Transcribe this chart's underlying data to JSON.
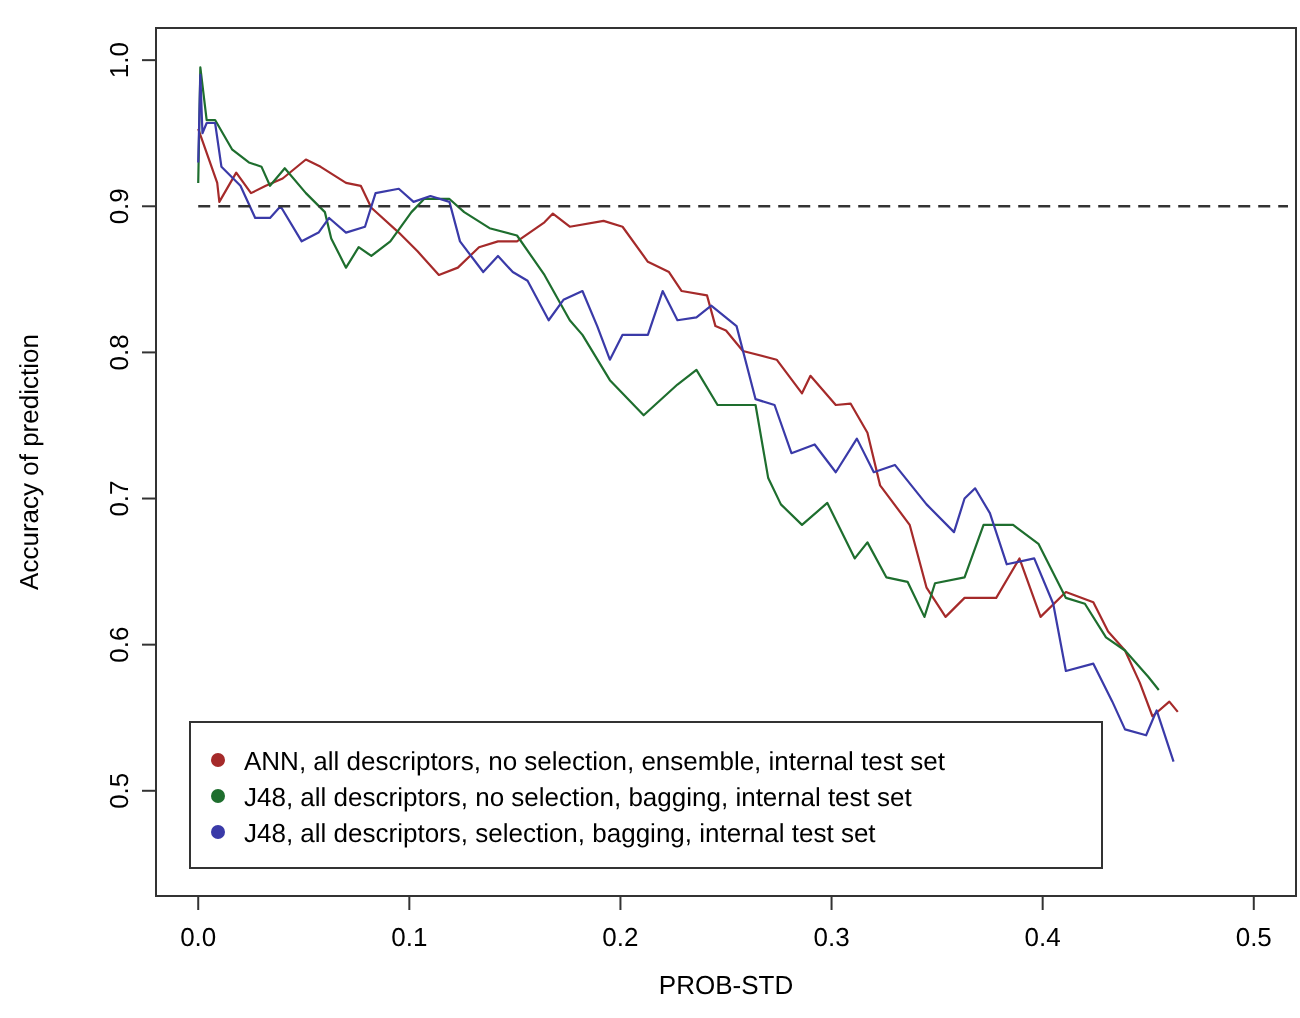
{
  "chart_data": {
    "type": "line",
    "xlabel": "PROB-STD",
    "ylabel": "Accuracy of prediction",
    "xlim": [
      -0.02,
      0.52
    ],
    "ylim": [
      0.428,
      1.022
    ],
    "xticks": [
      {
        "value": 0,
        "label": "0.0"
      },
      0.1,
      0.2,
      0.3,
      0.4,
      0.5
    ],
    "yticks": [
      0.5,
      0.6,
      0.7,
      0.8,
      0.9,
      {
        "value": 1,
        "label": "1.0"
      }
    ],
    "grid": false,
    "legend": "bottom left",
    "line_style": "solid",
    "marker": "none",
    "ref_lines": [
      {
        "axis": "y",
        "value": 0.9,
        "line_style": "dashed",
        "color": "#333333"
      }
    ],
    "series": [
      {
        "name": "ANN, all descriptors, no selection, ensemble, internal test set",
        "color": "#a52a2a",
        "x": [
          0,
          0.009,
          0.01,
          0.018,
          0.025,
          0.032,
          0.04,
          0.051,
          0.058,
          0.07,
          0.077,
          0.082,
          0.095,
          0.104,
          0.114,
          0.123,
          0.133,
          0.142,
          0.151,
          0.164,
          0.168,
          0.176,
          0.192,
          0.201,
          0.213,
          0.223,
          0.229,
          0.241,
          0.245,
          0.25,
          0.258,
          0.274,
          0.286,
          0.29,
          0.302,
          0.309,
          0.317,
          0.323,
          0.337,
          0.345,
          0.354,
          0.363,
          0.37,
          0.378,
          0.389,
          0.399,
          0.411,
          0.424,
          0.431,
          0.439,
          0.446,
          0.452,
          0.46,
          0.464
        ],
        "values": [
          0.953,
          0.916,
          0.903,
          0.923,
          0.909,
          0.914,
          0.919,
          0.932,
          0.927,
          0.916,
          0.914,
          0.899,
          0.882,
          0.869,
          0.853,
          0.858,
          0.872,
          0.876,
          0.876,
          0.889,
          0.895,
          0.886,
          0.89,
          0.886,
          0.862,
          0.855,
          0.842,
          0.839,
          0.818,
          0.815,
          0.801,
          0.795,
          0.772,
          0.784,
          0.764,
          0.765,
          0.745,
          0.709,
          0.682,
          0.639,
          0.619,
          0.632,
          0.632,
          0.632,
          0.659,
          0.619,
          0.636,
          0.629,
          0.609,
          0.596,
          0.574,
          0.551,
          0.561,
          0.554
        ]
      },
      {
        "name": "J48, all descriptors, no selection, bagging, internal test set",
        "color": "#1e6e2e",
        "x": [
          0,
          0.001,
          0.004,
          0.008,
          0.016,
          0.024,
          0.03,
          0.034,
          0.041,
          0.051,
          0.06,
          0.063,
          0.07,
          0.076,
          0.082,
          0.091,
          0.101,
          0.107,
          0.119,
          0.126,
          0.138,
          0.151,
          0.164,
          0.176,
          0.182,
          0.195,
          0.211,
          0.227,
          0.236,
          0.246,
          0.264,
          0.27,
          0.276,
          0.286,
          0.298,
          0.311,
          0.317,
          0.326,
          0.336,
          0.344,
          0.349,
          0.363,
          0.372,
          0.386,
          0.398,
          0.411,
          0.42,
          0.43,
          0.439,
          0.45,
          0.455
        ],
        "values": [
          0.916,
          0.995,
          0.959,
          0.959,
          0.939,
          0.93,
          0.927,
          0.914,
          0.926,
          0.909,
          0.896,
          0.878,
          0.858,
          0.872,
          0.866,
          0.876,
          0.896,
          0.905,
          0.905,
          0.896,
          0.885,
          0.88,
          0.853,
          0.822,
          0.812,
          0.781,
          0.757,
          0.778,
          0.788,
          0.764,
          0.764,
          0.714,
          0.696,
          0.682,
          0.697,
          0.659,
          0.67,
          0.646,
          0.643,
          0.619,
          0.642,
          0.646,
          0.682,
          0.682,
          0.669,
          0.632,
          0.628,
          0.605,
          0.596,
          0.578,
          0.569
        ]
      },
      {
        "name": "J48, all descriptors, selection, bagging, internal test set",
        "color": "#3a3aa8",
        "x": [
          0,
          0.001,
          0.002,
          0.004,
          0.008,
          0.011,
          0.02,
          0.027,
          0.034,
          0.039,
          0.049,
          0.057,
          0.062,
          0.07,
          0.079,
          0.084,
          0.095,
          0.102,
          0.11,
          0.119,
          0.124,
          0.135,
          0.142,
          0.149,
          0.156,
          0.166,
          0.173,
          0.182,
          0.189,
          0.195,
          0.201,
          0.213,
          0.22,
          0.227,
          0.236,
          0.243,
          0.255,
          0.264,
          0.273,
          0.281,
          0.292,
          0.302,
          0.312,
          0.32,
          0.33,
          0.345,
          0.358,
          0.363,
          0.368,
          0.375,
          0.383,
          0.396,
          0.405,
          0.411,
          0.424,
          0.433,
          0.439,
          0.449,
          0.454,
          0.462
        ],
        "values": [
          0.93,
          0.99,
          0.95,
          0.957,
          0.957,
          0.927,
          0.914,
          0.892,
          0.892,
          0.9,
          0.876,
          0.882,
          0.892,
          0.882,
          0.886,
          0.909,
          0.912,
          0.903,
          0.907,
          0.903,
          0.876,
          0.855,
          0.866,
          0.855,
          0.849,
          0.822,
          0.836,
          0.842,
          0.818,
          0.795,
          0.812,
          0.812,
          0.842,
          0.822,
          0.824,
          0.832,
          0.818,
          0.768,
          0.764,
          0.731,
          0.737,
          0.718,
          0.741,
          0.718,
          0.723,
          0.696,
          0.677,
          0.7,
          0.707,
          0.69,
          0.655,
          0.659,
          0.628,
          0.582,
          0.587,
          0.561,
          0.542,
          0.538,
          0.555,
          0.52
        ]
      }
    ]
  }
}
